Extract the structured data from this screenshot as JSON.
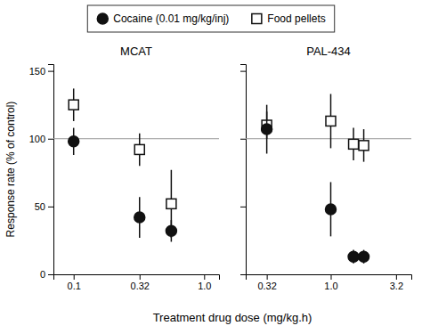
{
  "chart_data": [
    {
      "type": "scatter",
      "title": "MCAT",
      "log": "x",
      "xlabel": "Treatment drug dose (mg/kg.h)",
      "ylabel": "Response rate (% of control)",
      "legend": "top",
      "xlim": [
        0.07,
        1.3
      ],
      "xticks": [
        0.1,
        0.32,
        {
          "value": 1.0,
          "label": "1.0"
        }
      ],
      "ylim": [
        0,
        155
      ],
      "yticks": [
        0,
        50,
        100,
        150
      ],
      "reference_line": 100,
      "series": [
        {
          "name": "Cocaine (0.01 mg/kg/inj)",
          "color": "#111111",
          "marker": "circle",
          "x": [
            0.1,
            0.32,
            0.56
          ],
          "values": [
            98,
            42,
            32
          ],
          "errors": [
            10,
            15,
            8
          ]
        },
        {
          "name": "Food pellets",
          "color": "#111111",
          "marker": "square-open",
          "x": [
            0.1,
            0.32,
            0.56
          ],
          "values": [
            125,
            92,
            52
          ],
          "errors": [
            12,
            12,
            25
          ]
        }
      ]
    },
    {
      "type": "scatter",
      "title": "PAL-434",
      "log": "x",
      "tick_labels": "x",
      "xlim": [
        0.22,
        4.2
      ],
      "xticks": [
        0.32,
        {
          "value": 1.0,
          "label": "1.0"
        },
        3.2
      ],
      "ylim": [
        0,
        155
      ],
      "yticks": [
        0,
        50,
        100,
        150
      ],
      "reference_line": 100,
      "series": [
        {
          "color": "#111111",
          "marker": "circle",
          "x": [
            0.32,
            1.0,
            1.5,
            1.8
          ],
          "values": [
            107,
            48,
            13,
            13
          ],
          "errors": [
            18,
            20,
            5,
            5
          ]
        },
        {
          "color": "#111111",
          "marker": "square-open",
          "x": [
            0.32,
            1.0,
            1.5,
            1.8
          ],
          "values": [
            110,
            113,
            96,
            95
          ],
          "errors": [
            10,
            20,
            12,
            12
          ]
        }
      ]
    }
  ]
}
